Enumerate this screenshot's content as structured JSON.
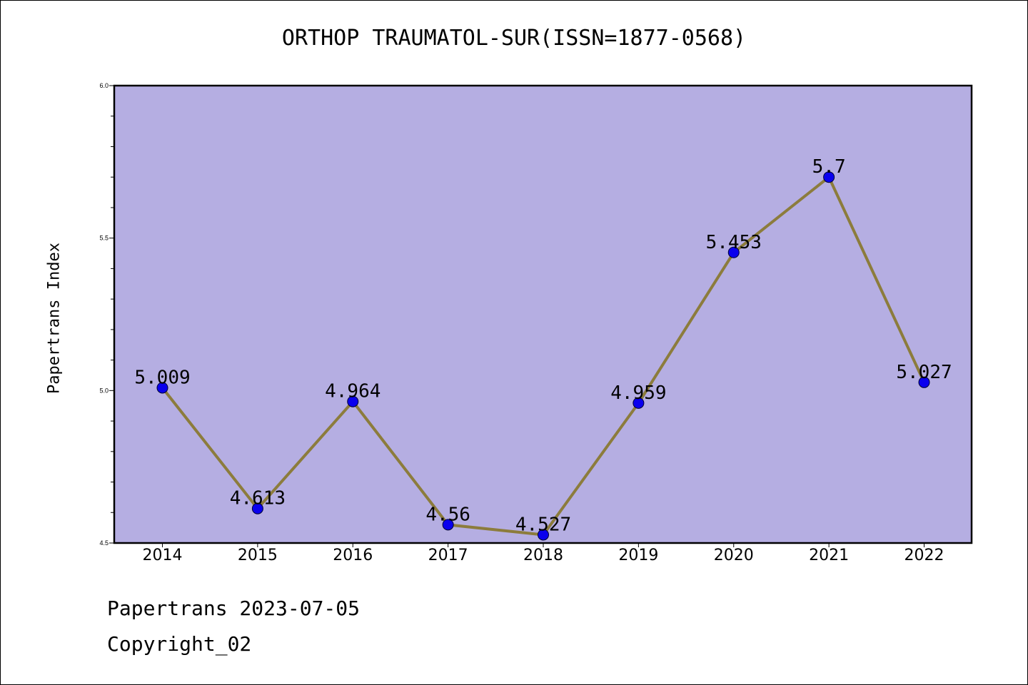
{
  "chart_data": {
    "type": "line",
    "title": "ORTHOP TRAUMATOL-SUR(ISSN=1877-0568)",
    "xlabel": "",
    "ylabel": "Papertrans Index",
    "x": [
      "2014",
      "2015",
      "2016",
      "2017",
      "2018",
      "2019",
      "2020",
      "2021",
      "2022"
    ],
    "values": [
      5.009,
      4.613,
      4.964,
      4.56,
      4.527,
      4.959,
      5.453,
      5.7,
      5.027
    ],
    "data_labels": [
      "5.009",
      "4.613",
      "4.964",
      "4.56",
      "4.527",
      "4.959",
      "5.453",
      "5.7",
      "5.027"
    ],
    "ylim": [
      4.5,
      6.0
    ],
    "yticks": [
      "4.5",
      "5.0",
      "5.5",
      "6.0"
    ],
    "grid": false,
    "colors": {
      "plot_background": "#b5aee2",
      "line": "#8c7c3c",
      "marker": "#0a00ee"
    }
  },
  "footer": {
    "date_text": "Papertrans 2023-07-05",
    "copyright_text": "Copyright_02"
  }
}
